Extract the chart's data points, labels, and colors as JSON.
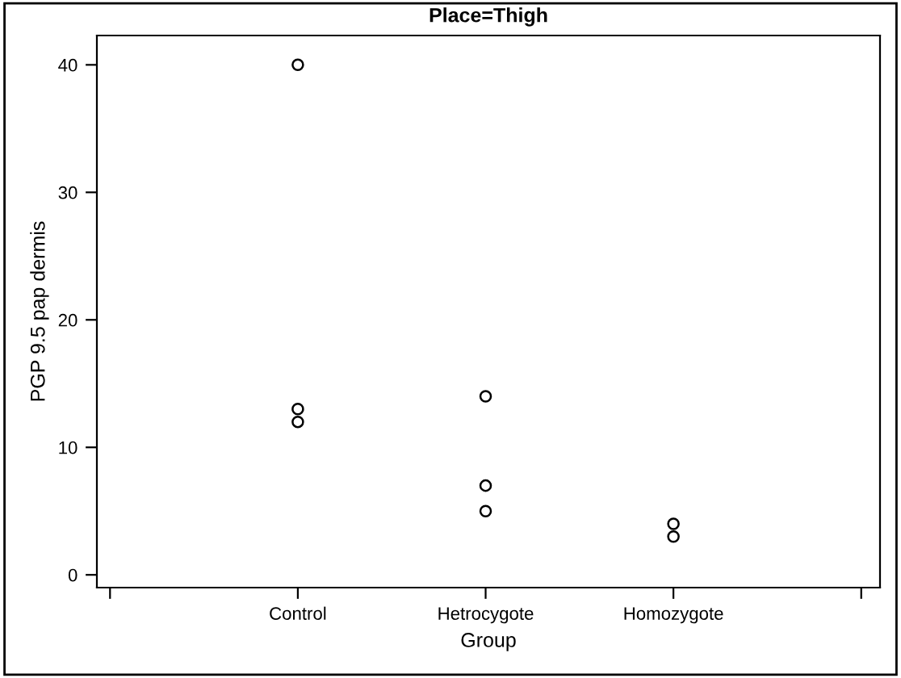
{
  "chart_data": {
    "type": "scatter",
    "title": "Place=Thigh",
    "xlabel": "Group",
    "ylabel": "PGP 9.5 pap dermis",
    "categories": [
      null,
      "Control",
      "Hetrocygote",
      "Homozygote",
      null
    ],
    "series": [
      {
        "color": "#000000",
        "values": [
          null,
          40,
          14,
          4,
          null
        ]
      },
      {
        "color": "#000000",
        "values": [
          null,
          13,
          7,
          3,
          null
        ]
      },
      {
        "color": "#000000",
        "values": [
          null,
          12,
          5,
          null,
          null
        ]
      }
    ],
    "ylim": [
      -1,
      42.3
    ],
    "yticks": [
      0,
      10,
      20,
      30,
      40
    ],
    "grid": false,
    "legend": false,
    "marker": "circle"
  }
}
